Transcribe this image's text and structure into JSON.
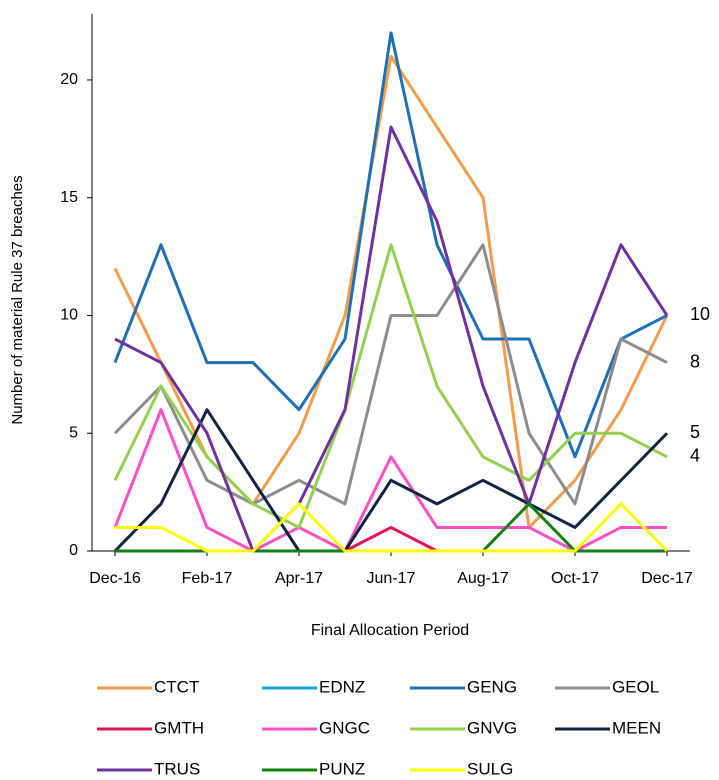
{
  "chart_data": {
    "type": "line",
    "x_label": "Final Allocation Period",
    "y_label": "Number of material  Rule 37 breaches",
    "categories": [
      "Dec-16",
      null,
      "Feb-17",
      null,
      "Apr-17",
      null,
      "Jun-17",
      null,
      "Aug-17",
      null,
      "Oct-17",
      null,
      "Dec-17"
    ],
    "ylim": [
      0,
      22.8
    ],
    "yticks": [
      0,
      5,
      10,
      15,
      20
    ],
    "grid": false,
    "legend": "bottom",
    "end_labels": [
      10,
      8,
      5,
      4
    ],
    "series": [
      {
        "name": "CTCT",
        "color": "#f59c4a",
        "values": [
          12,
          8,
          4,
          2,
          5,
          10,
          21,
          18,
          15,
          1,
          3,
          6,
          10
        ]
      },
      {
        "name": "EDNZ",
        "color": "#1aa7e0",
        "values": [
          0,
          0,
          0,
          0,
          0,
          0,
          0,
          0,
          0,
          0,
          0,
          0,
          0
        ]
      },
      {
        "name": "GENG",
        "color": "#1f6fb5",
        "values": [
          8,
          13,
          8,
          8,
          6,
          9,
          22,
          13,
          9,
          9,
          4,
          9,
          10
        ]
      },
      {
        "name": "GEOL",
        "color": "#8c8c8c",
        "values": [
          5,
          7,
          3,
          2,
          3,
          2,
          10,
          10,
          13,
          5,
          2,
          9,
          8
        ]
      },
      {
        "name": "GMTH",
        "color": "#e8115a",
        "values": [
          0,
          0,
          0,
          0,
          0,
          0,
          1,
          0,
          0,
          0,
          0,
          0,
          0
        ]
      },
      {
        "name": "GNGC",
        "color": "#ff4fc8",
        "values": [
          1,
          6,
          1,
          0,
          1,
          0,
          4,
          1,
          1,
          1,
          0,
          1,
          1
        ]
      },
      {
        "name": "GNVG",
        "color": "#92d050",
        "values": [
          3,
          7,
          4,
          2,
          1,
          6,
          13,
          7,
          4,
          3,
          5,
          5,
          4
        ]
      },
      {
        "name": "MEEN",
        "color": "#0f2440",
        "values": [
          0,
          2,
          6,
          3,
          0,
          0,
          3,
          2,
          3,
          2,
          1,
          3,
          5
        ]
      },
      {
        "name": "TRUS",
        "color": "#7030a0",
        "values": [
          9,
          8,
          5,
          0,
          2,
          6,
          18,
          14,
          7,
          2,
          8,
          13,
          10
        ]
      },
      {
        "name": "PUNZ",
        "color": "#108010",
        "values": [
          0,
          0,
          0,
          0,
          0,
          0,
          0,
          0,
          0,
          2,
          0,
          0,
          0
        ]
      },
      {
        "name": "SULG",
        "color": "#ffff00",
        "values": [
          1,
          1,
          0,
          0,
          2,
          0,
          0,
          0,
          0,
          0,
          0,
          2,
          0
        ]
      }
    ]
  }
}
